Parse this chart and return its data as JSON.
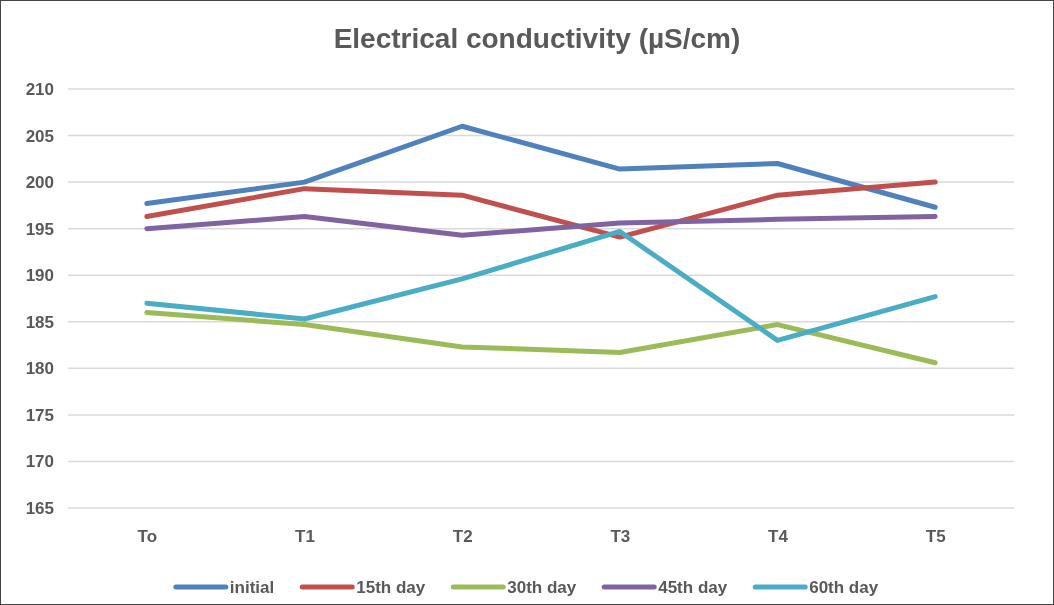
{
  "chart_data": {
    "type": "line",
    "title": "Electrical conductivity (µS/cm)",
    "categories": [
      "To",
      "T1",
      "T2",
      "T3",
      "T4",
      "T5"
    ],
    "series": [
      {
        "name": "initial",
        "color": "#4f81bd",
        "values": [
          197.7,
          200.0,
          206.0,
          201.4,
          202.0,
          197.3
        ]
      },
      {
        "name": "15th day",
        "color": "#c0504d",
        "values": [
          196.3,
          199.3,
          198.6,
          194.1,
          198.6,
          200.0
        ]
      },
      {
        "name": "30th day",
        "color": "#9bbb59",
        "values": [
          186.0,
          184.7,
          182.3,
          181.7,
          184.7,
          180.6
        ]
      },
      {
        "name": "45th day",
        "color": "#8064a2",
        "values": [
          195.0,
          196.3,
          194.3,
          195.6,
          196.0,
          196.3
        ]
      },
      {
        "name": "60th day",
        "color": "#4bacc6",
        "values": [
          187.0,
          185.3,
          189.6,
          194.7,
          183.0,
          187.7
        ]
      }
    ],
    "ylim": [
      165,
      210
    ],
    "yticks": [
      165,
      170,
      175,
      180,
      185,
      190,
      195,
      200,
      205,
      210
    ],
    "grid": "y",
    "legend": "bottom",
    "marker": "none",
    "line_style": "solid"
  }
}
